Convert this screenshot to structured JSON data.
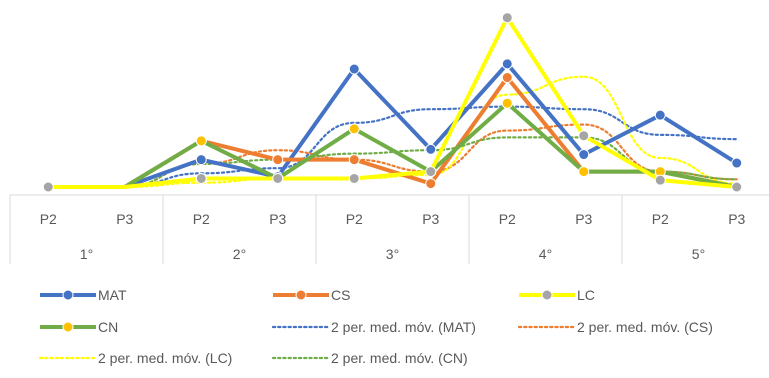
{
  "chart_data": {
    "type": "line",
    "title": "",
    "xlabel": "",
    "ylabel": "",
    "ylim": [
      0,
      10
    ],
    "categories": [
      "P2",
      "P3",
      "P2",
      "P3",
      "P2",
      "P3",
      "P2",
      "P3",
      "P2",
      "P3"
    ],
    "groups": [
      "1°",
      "2°",
      "3°",
      "4°",
      "5°"
    ],
    "series": [
      {
        "name": "MAT",
        "color": "#4472C4",
        "values": [
          null,
          0,
          1.6,
          0.6,
          6.9,
          2.2,
          7.2,
          1.9,
          4.2,
          1.4
        ]
      },
      {
        "name": "CS",
        "color": "#ED7D31",
        "values": [
          null,
          0,
          2.7,
          1.6,
          1.6,
          0.2,
          6.4,
          0.9,
          0.9,
          0
        ]
      },
      {
        "name": "LC",
        "color": "#FFFF00",
        "marker_color": "#A5A5A5",
        "values": [
          0,
          0,
          0.5,
          0.5,
          0.5,
          0.9,
          9.9,
          3.0,
          0.4,
          0
        ]
      },
      {
        "name": "CN",
        "color": "#70AD47",
        "marker_color": "#FFC000",
        "values": [
          null,
          0,
          2.7,
          0.5,
          3.4,
          0.9,
          4.9,
          0.9,
          0.9,
          0
        ]
      },
      {
        "name": "2 per. med. móv. (MAT)",
        "color": "#4472C4",
        "dashed": true,
        "values": [
          null,
          0,
          0.8,
          1.1,
          3.75,
          4.55,
          4.7,
          4.55,
          3.05,
          2.8
        ]
      },
      {
        "name": "2 per. med. móv. (CS)",
        "color": "#ED7D31",
        "dashed": true,
        "values": [
          null,
          0,
          1.35,
          2.15,
          1.6,
          0.9,
          3.3,
          3.65,
          0.9,
          0.45
        ]
      },
      {
        "name": "2 per. med. móv. (LC)",
        "color": "#FFFF00",
        "dashed": true,
        "values": [
          null,
          0,
          0.25,
          0.5,
          0.5,
          0.7,
          5.4,
          6.45,
          1.7,
          0.2
        ]
      },
      {
        "name": "2 per. med. móv. (CN)",
        "color": "#70AD47",
        "dashed": true,
        "values": [
          null,
          0,
          1.35,
          1.6,
          1.95,
          2.15,
          2.9,
          2.9,
          0.9,
          0.45
        ]
      }
    ],
    "legend_position": "bottom",
    "grid": false
  }
}
